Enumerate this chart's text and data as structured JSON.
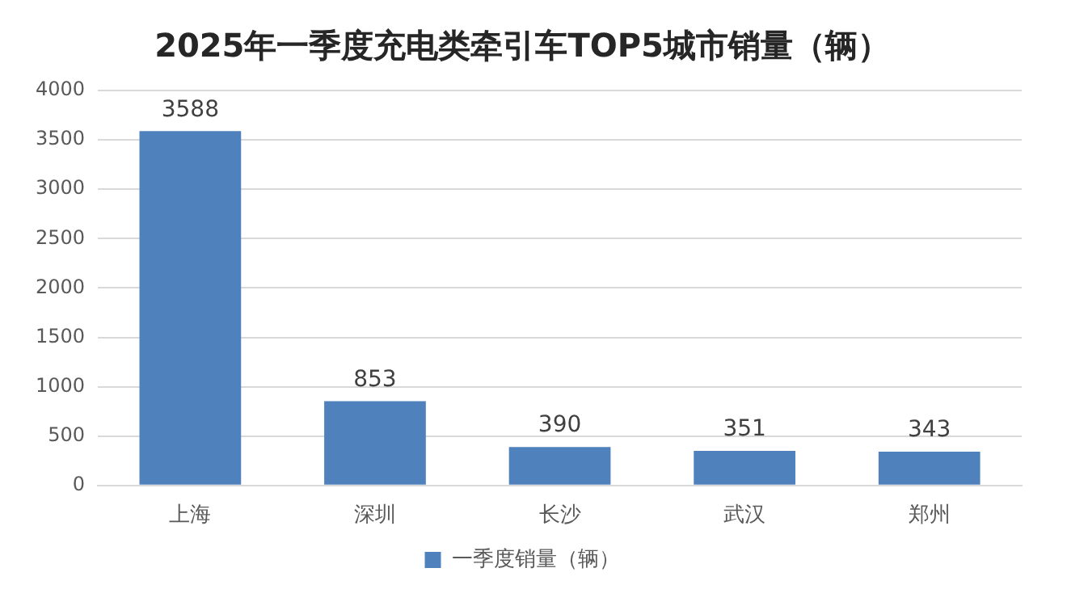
{
  "chart_data": {
    "type": "bar",
    "title": "2025年一季度充电类牵引车TOP5城市销量（辆）",
    "categories": [
      "上海",
      "深圳",
      "长沙",
      "武汉",
      "郑州"
    ],
    "series": [
      {
        "name": "一季度销量（辆）",
        "color": "#4f81bd",
        "values": [
          3588,
          853,
          390,
          351,
          343
        ]
      }
    ],
    "ylim": [
      0,
      4000
    ],
    "yticks": [
      0,
      500,
      1000,
      1500,
      2000,
      2500,
      3000,
      3500,
      4000
    ],
    "grid": "y",
    "legend": "bottom",
    "data_labels": true
  }
}
